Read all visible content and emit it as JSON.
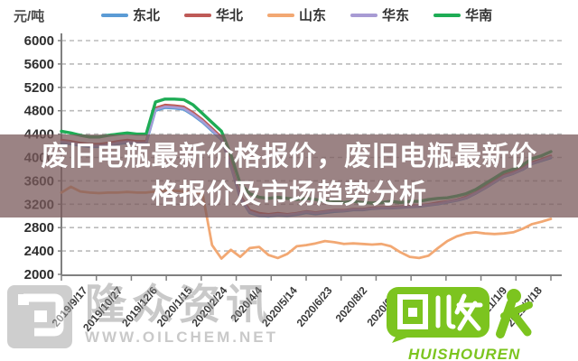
{
  "legend": {
    "unit_label": "元/吨",
    "items": [
      {
        "label": "东北",
        "color": "#5B9BD5"
      },
      {
        "label": "华北",
        "color": "#BE5A57"
      },
      {
        "label": "山东",
        "color": "#F2A873"
      },
      {
        "label": "华东",
        "color": "#A89BD4"
      },
      {
        "label": "华南",
        "color": "#1EAC55"
      }
    ]
  },
  "overlay": {
    "line1": "废旧电瓶最新价格报价，废旧电瓶最新价",
    "line2": "格报价及市场趋势分析",
    "background": "rgba(122,90,91,0.75)",
    "text_color": "#ffffff"
  },
  "watermarks": {
    "left": {
      "brand": "隆众资讯",
      "url_text": "WWW.OILCHEM.NET",
      "color": "#8f8f8f"
    },
    "right": {
      "logo_text": "回收",
      "brand": "HUISHOUREN",
      "color": "#7cc41f"
    }
  },
  "chart_data": {
    "type": "line",
    "title": "",
    "ylabel": "元/吨",
    "ylim": [
      2000,
      6000
    ],
    "ytick_step": 400,
    "grid": "dashed-horizontal",
    "legend_position": "top",
    "x_labels": [
      "2019/9/17",
      "2019/10/27",
      "2019/12/6",
      "2020/1/15",
      "2020/2/24",
      "2020/4/4",
      "2020/5/14",
      "2020/6/23",
      "2020/8/2",
      "2020/9/11",
      "2020/10/21",
      "2020/11/30",
      "2021/1/9",
      "2021/2/18"
    ],
    "series": [
      {
        "name": "东北",
        "color": "#5B9BD5",
        "width": 2.6,
        "values": [
          4250,
          4230,
          4200,
          4180,
          4180,
          4200,
          4230,
          4250,
          4230,
          4230,
          4800,
          4850,
          4840,
          4820,
          4720,
          4600,
          4450,
          4300,
          3850,
          3300,
          3050,
          3000,
          2990,
          3010,
          3000,
          3020,
          3050,
          3030,
          3050,
          3070,
          3080,
          3100,
          3100,
          3120,
          3130,
          3130,
          3140,
          3150,
          3160,
          3180,
          3200,
          3230,
          3260,
          3300,
          3380,
          3470,
          3570,
          3670,
          3720,
          3790,
          3890,
          3940,
          3990
        ]
      },
      {
        "name": "华北",
        "color": "#BE5A57",
        "width": 2.6,
        "values": [
          4300,
          4280,
          4250,
          4230,
          4230,
          4250,
          4280,
          4300,
          4280,
          4280,
          4850,
          4900,
          4890,
          4870,
          4770,
          4650,
          4500,
          4350,
          3900,
          3350,
          3100,
          3050,
          3030,
          3050,
          3030,
          3050,
          3080,
          3060,
          3080,
          3100,
          3100,
          3120,
          3120,
          3140,
          3150,
          3150,
          3160,
          3170,
          3180,
          3200,
          3230,
          3250,
          3280,
          3330,
          3400,
          3500,
          3600,
          3700,
          3750,
          3820,
          3920,
          3970,
          4030
        ]
      },
      {
        "name": "山东",
        "color": "#F2A873",
        "width": 2.8,
        "values": [
          3400,
          3500,
          3420,
          3400,
          3390,
          3400,
          3400,
          3410,
          3400,
          3400,
          3420,
          3430,
          3430,
          3420,
          3400,
          3380,
          2500,
          2270,
          2420,
          2300,
          2450,
          2470,
          2330,
          2280,
          2350,
          2480,
          2500,
          2530,
          2570,
          2550,
          2520,
          2530,
          2520,
          2510,
          2520,
          2480,
          2380,
          2300,
          2280,
          2320,
          2450,
          2570,
          2650,
          2700,
          2720,
          2700,
          2690,
          2700,
          2720,
          2780,
          2860,
          2900,
          2950
        ]
      },
      {
        "name": "华东",
        "color": "#A89BD4",
        "width": 2.6,
        "values": [
          4270,
          4250,
          4220,
          4200,
          4200,
          4220,
          4250,
          4270,
          4250,
          4250,
          4820,
          4870,
          4860,
          4840,
          4740,
          4620,
          4470,
          4320,
          3870,
          3320,
          3070,
          3020,
          3010,
          3030,
          3020,
          3040,
          3070,
          3050,
          3070,
          3090,
          3090,
          3110,
          3110,
          3130,
          3140,
          3140,
          3150,
          3160,
          3170,
          3190,
          3210,
          3240,
          3270,
          3310,
          3390,
          3480,
          3580,
          3680,
          3730,
          3800,
          3900,
          3950,
          4010
        ]
      },
      {
        "name": "华南",
        "color": "#1EAC55",
        "width": 3.4,
        "values": [
          4450,
          4420,
          4380,
          4350,
          4350,
          4380,
          4400,
          4420,
          4400,
          4400,
          4950,
          5000,
          5000,
          4990,
          4900,
          4750,
          4600,
          4450,
          4050,
          3550,
          3380,
          3320,
          3300,
          3320,
          3300,
          3280,
          3300,
          3280,
          3250,
          3250,
          3230,
          3250,
          3230,
          3220,
          3230,
          3250,
          3230,
          3250,
          3250,
          3280,
          3300,
          3310,
          3340,
          3380,
          3450,
          3550,
          3650,
          3750,
          3800,
          3870,
          3980,
          4030,
          4100
        ]
      }
    ]
  }
}
